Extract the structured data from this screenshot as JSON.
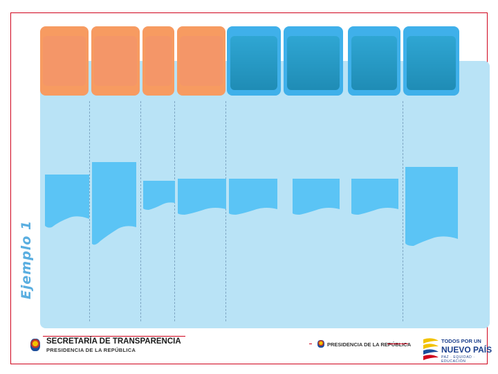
{
  "slide": {
    "side_title": "Ejemplo 1"
  },
  "columns": [
    {
      "color": "orange"
    },
    {
      "color": "orange"
    },
    {
      "color": "orange"
    },
    {
      "color": "orange"
    },
    {
      "color": "blue"
    },
    {
      "color": "blue"
    },
    {
      "color": "blue"
    },
    {
      "color": "blue"
    }
  ],
  "footer": {
    "secretaria_title": "SECRETARÍA DE TRANSPARENCIA",
    "secretaria_sub": "PRESIDENCIA DE LA REPÚBLICA",
    "presidencia_label": "PRESIDENCIA DE LA REPÚBLICA",
    "brand_top": "TODOS POR UN",
    "brand_main": "NUEVO PAÍS",
    "brand_sub": "PAZ · EQUIDAD · EDUCACIÓN"
  },
  "colors": {
    "frame": "#d0021b",
    "header_orange": "#f79b61",
    "header_blue": "#3fb0ea",
    "panel": "#b9e3f6",
    "note": "#5bc4f5",
    "title": "#5aaee0"
  }
}
